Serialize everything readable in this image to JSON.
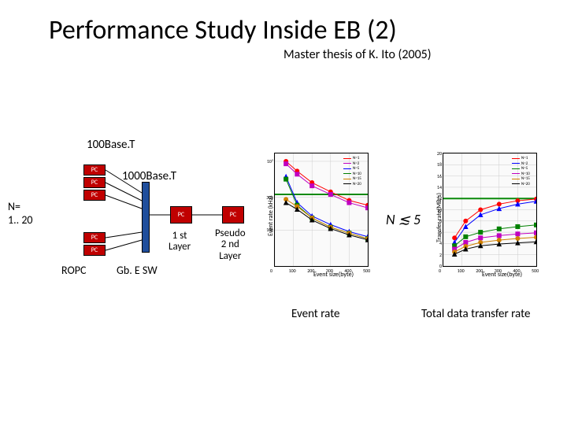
{
  "title": "Performance Study Inside EB (2)",
  "subtitle": "Master thesis of K. Ito (2005)",
  "link_100": "100Base.T",
  "link_1000": "1000Base.T",
  "n_label_1": "N=",
  "n_label_2": "1.. 20",
  "pc_label": "PC",
  "first_layer_1": "1 st",
  "first_layer_2": "Layer",
  "second_layer_1": "Pseudo",
  "second_layer_2": "2 nd",
  "second_layer_3": "Layer",
  "ropc": "ROPC",
  "gbesw": "Gb. E SW",
  "n_le_5": "N ≲ 5",
  "chart1_caption": "Event rate",
  "chart2_caption": "Total data transfer rate",
  "chart1": {
    "ylabel": "Event rate (kHz)",
    "xlabel": "Event size(byte)",
    "xlim": [
      0,
      500
    ],
    "ylim_log": [
      3,
      130
    ],
    "xticks": [
      0,
      100,
      200,
      300,
      400,
      500
    ],
    "ytick_labels": [
      "10k",
      "30k",
      "10²"
    ],
    "ytick_pos": [
      10,
      30,
      100
    ],
    "grid_color": "#cccccc",
    "hline_y": 33,
    "hline_color": "#0b8a0b",
    "series": [
      {
        "color": "#ff0000",
        "marker": "circle",
        "pts": [
          [
            60,
            100
          ],
          [
            120,
            72
          ],
          [
            200,
            49
          ],
          [
            300,
            36
          ],
          [
            400,
            27
          ],
          [
            500,
            23
          ]
        ]
      },
      {
        "color": "#c000c0",
        "marker": "square",
        "pts": [
          [
            60,
            92
          ],
          [
            120,
            65
          ],
          [
            200,
            44
          ],
          [
            300,
            33
          ],
          [
            400,
            25
          ],
          [
            500,
            21
          ]
        ]
      },
      {
        "color": "#0000ff",
        "marker": "triangle",
        "pts": [
          [
            60,
            60
          ],
          [
            120,
            25
          ],
          [
            200,
            16
          ],
          [
            300,
            12
          ],
          [
            400,
            9.5
          ],
          [
            500,
            8
          ]
        ]
      },
      {
        "color": "#008000",
        "marker": "square",
        "pts": [
          [
            60,
            55
          ],
          [
            120,
            23
          ],
          [
            200,
            15
          ],
          [
            300,
            11
          ],
          [
            400,
            9
          ],
          [
            500,
            7.5
          ]
        ]
      },
      {
        "color": "#d08000",
        "marker": "circle",
        "pts": [
          [
            60,
            28
          ],
          [
            120,
            22
          ],
          [
            200,
            15
          ],
          [
            300,
            11
          ],
          [
            400,
            9
          ],
          [
            500,
            7.5
          ]
        ]
      },
      {
        "color": "#000000",
        "marker": "triangle",
        "pts": [
          [
            60,
            25
          ],
          [
            120,
            20
          ],
          [
            200,
            14
          ],
          [
            300,
            10.5
          ],
          [
            400,
            8.5
          ],
          [
            500,
            7.2
          ]
        ]
      }
    ],
    "legend_items": [
      {
        "color": "#ff0000",
        "label": "N=1"
      },
      {
        "color": "#c000c0",
        "label": "N=2"
      },
      {
        "color": "#0000ff",
        "label": "N=5"
      },
      {
        "color": "#008000",
        "label": "N=10"
      },
      {
        "color": "#d08000",
        "label": "N=15"
      },
      {
        "color": "#000000",
        "label": "N=20"
      }
    ]
  },
  "chart2": {
    "ylabel": "Transfer rate(MB/s)",
    "xlabel": "Event size(byte)",
    "xlim": [
      0,
      500
    ],
    "ylim": [
      0,
      20
    ],
    "xticks": [
      0,
      100,
      200,
      300,
      400,
      500
    ],
    "yticks": [
      0,
      2,
      4,
      6,
      8,
      10,
      12,
      14,
      16,
      18,
      20
    ],
    "grid_color": "#cccccc",
    "hline_y": 12,
    "hline_color": "#0b8a0b",
    "series": [
      {
        "color": "#ff0000",
        "marker": "circle",
        "pts": [
          [
            60,
            5
          ],
          [
            120,
            8
          ],
          [
            200,
            10
          ],
          [
            300,
            11
          ],
          [
            400,
            11.6
          ],
          [
            500,
            11.9
          ]
        ]
      },
      {
        "color": "#0000ff",
        "marker": "triangle",
        "pts": [
          [
            60,
            4.2
          ],
          [
            120,
            7.0
          ],
          [
            200,
            9.1
          ],
          [
            300,
            10.2
          ],
          [
            400,
            11.0
          ],
          [
            500,
            11.5
          ]
        ]
      },
      {
        "color": "#008000",
        "marker": "square",
        "pts": [
          [
            60,
            3.6
          ],
          [
            120,
            5.2
          ],
          [
            200,
            6.0
          ],
          [
            300,
            6.6
          ],
          [
            400,
            7.0
          ],
          [
            500,
            7.3
          ]
        ]
      },
      {
        "color": "#c000c0",
        "marker": "square",
        "pts": [
          [
            60,
            3.0
          ],
          [
            120,
            4.2
          ],
          [
            200,
            5.0
          ],
          [
            300,
            5.4
          ],
          [
            400,
            5.7
          ],
          [
            500,
            5.9
          ]
        ]
      },
      {
        "color": "#d08000",
        "marker": "circle",
        "pts": [
          [
            60,
            2.5
          ],
          [
            120,
            3.5
          ],
          [
            200,
            4.2
          ],
          [
            300,
            4.6
          ],
          [
            400,
            4.9
          ],
          [
            500,
            5.1
          ]
        ]
      },
      {
        "color": "#000000",
        "marker": "triangle",
        "pts": [
          [
            60,
            2.1
          ],
          [
            120,
            3.0
          ],
          [
            200,
            3.6
          ],
          [
            300,
            3.9
          ],
          [
            400,
            4.1
          ],
          [
            500,
            4.3
          ]
        ]
      }
    ],
    "legend_items": [
      {
        "color": "#ff0000",
        "label": "N=1"
      },
      {
        "color": "#0000ff",
        "label": "N=2"
      },
      {
        "color": "#008000",
        "label": "N=5"
      },
      {
        "color": "#c000c0",
        "label": "N=10"
      },
      {
        "color": "#d08000",
        "label": "N=15"
      },
      {
        "color": "#000000",
        "label": "N=20"
      }
    ]
  }
}
